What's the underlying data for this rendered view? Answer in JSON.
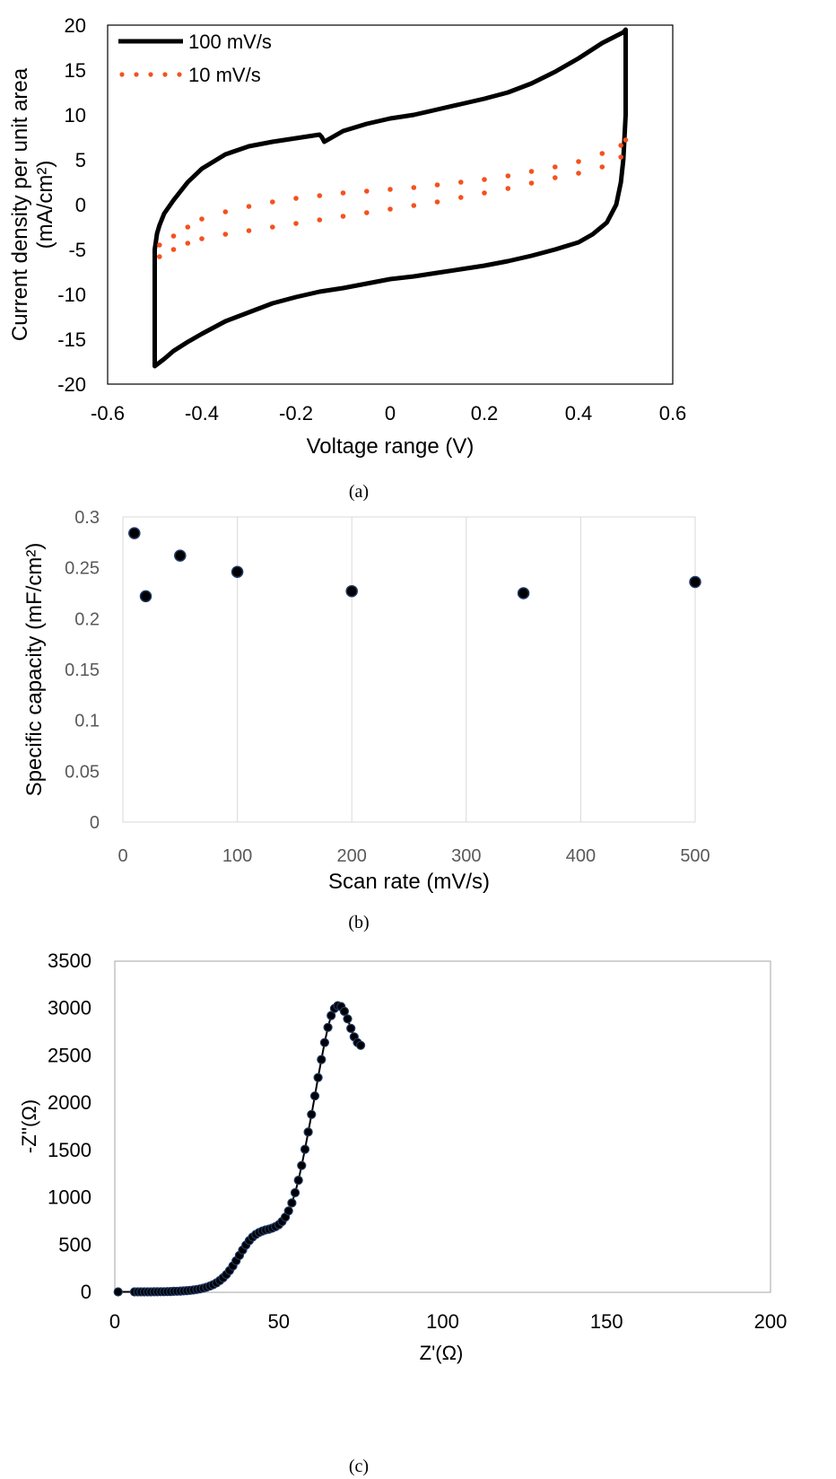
{
  "chart_data": [
    {
      "type": "line",
      "caption": "(a)",
      "xlabel": "Voltage range (V)",
      "ylabel": "Current density per unit area (mA/cm²)",
      "ylabel_lines": [
        "Current density per unit area",
        "(mA/cm²)"
      ],
      "xlim": [
        -0.6,
        0.6
      ],
      "ylim": [
        -20,
        20
      ],
      "xticks": [
        "-0.6",
        "-0.4",
        "-0.2",
        "0",
        "0.2",
        "0.4",
        "0.6"
      ],
      "yticks": [
        "-20",
        "-15",
        "-10",
        "-5",
        "0",
        "5",
        "10",
        "15",
        "20"
      ],
      "grid": false,
      "legend": "top-left",
      "series": [
        {
          "name": "100 mV/s",
          "color": "#000000",
          "style": "solid",
          "x": [
            -0.5,
            -0.495,
            -0.49,
            -0.48,
            -0.46,
            -0.43,
            -0.4,
            -0.35,
            -0.3,
            -0.25,
            -0.2,
            -0.15,
            -0.145,
            -0.14,
            -0.1,
            -0.05,
            0,
            0.05,
            0.1,
            0.15,
            0.2,
            0.25,
            0.3,
            0.35,
            0.4,
            0.45,
            0.48,
            0.495,
            0.5,
            0.5,
            0.495,
            0.49,
            0.48,
            0.46,
            0.43,
            0.4,
            0.35,
            0.3,
            0.25,
            0.2,
            0.15,
            0.1,
            0.05,
            0,
            -0.05,
            -0.1,
            -0.15,
            -0.2,
            -0.25,
            -0.3,
            -0.35,
            -0.4,
            -0.43,
            -0.46,
            -0.48,
            -0.5,
            -0.5
          ],
          "y": [
            -5,
            -3.2,
            -2.3,
            -1,
            0.5,
            2.5,
            4,
            5.6,
            6.5,
            7,
            7.4,
            7.8,
            7.5,
            7,
            8.2,
            9,
            9.6,
            10,
            10.6,
            11.2,
            11.8,
            12.5,
            13.5,
            14.8,
            16.3,
            18,
            18.8,
            19.2,
            19.5,
            10,
            5,
            2.5,
            0,
            -2,
            -3.3,
            -4.2,
            -5,
            -5.7,
            -6.3,
            -6.8,
            -7.2,
            -7.6,
            -8,
            -8.3,
            -8.8,
            -9.3,
            -9.7,
            -10.3,
            -11,
            -12,
            -13,
            -14.4,
            -15.3,
            -16.3,
            -17.2,
            -18,
            -5
          ]
        },
        {
          "name": "10 mV/s",
          "color": "#F4511E",
          "style": "dotted",
          "x": [
            -0.49,
            -0.46,
            -0.43,
            -0.4,
            -0.35,
            -0.3,
            -0.25,
            -0.2,
            -0.15,
            -0.1,
            -0.05,
            0,
            0.05,
            0.1,
            0.15,
            0.2,
            0.25,
            0.3,
            0.35,
            0.4,
            0.45,
            0.49,
            0.5,
            0.49,
            0.45,
            0.4,
            0.35,
            0.3,
            0.25,
            0.2,
            0.15,
            0.1,
            0.05,
            0,
            -0.05,
            -0.1,
            -0.15,
            -0.2,
            -0.25,
            -0.3,
            -0.35,
            -0.4,
            -0.43,
            -0.46,
            -0.49
          ],
          "y": [
            -4.5,
            -3.5,
            -2.5,
            -1.6,
            -0.8,
            -0.2,
            0.3,
            0.7,
            1,
            1.3,
            1.5,
            1.7,
            1.9,
            2.2,
            2.5,
            2.8,
            3.2,
            3.7,
            4.2,
            4.8,
            5.7,
            6.6,
            7.2,
            5.3,
            4.2,
            3.5,
            3,
            2.4,
            1.8,
            1.3,
            0.8,
            0.3,
            -0.1,
            -0.5,
            -0.9,
            -1.3,
            -1.7,
            -2.1,
            -2.5,
            -2.9,
            -3.3,
            -3.8,
            -4.3,
            -5,
            -5.8
          ]
        }
      ]
    },
    {
      "type": "scatter",
      "caption": "(b)",
      "xlabel": "Scan rate (mV/s)",
      "ylabel": "Specific capacity (mF/cm²)",
      "xlim": [
        0,
        500
      ],
      "ylim": [
        0,
        0.3
      ],
      "xticks": [
        "0",
        "100",
        "200",
        "300",
        "400",
        "500"
      ],
      "yticks": [
        "0",
        "0.05",
        "0.1",
        "0.15",
        "0.2",
        "0.25",
        "0.3"
      ],
      "grid": false,
      "marker_color": "#000000",
      "marker_edge": "#1F3864",
      "series": [
        {
          "x": [
            10,
            20,
            50,
            100,
            200,
            350,
            500
          ],
          "y": [
            0.284,
            0.222,
            0.262,
            0.246,
            0.227,
            0.225,
            0.236
          ]
        }
      ]
    },
    {
      "type": "line",
      "caption": "(c)",
      "xlabel": "Z'(Ω)",
      "ylabel": "-Z''(Ω)",
      "xlim": [
        0,
        200
      ],
      "ylim": [
        0,
        3500
      ],
      "xticks": [
        "0",
        "50",
        "100",
        "150",
        "200"
      ],
      "yticks": [
        "0",
        "500",
        "1000",
        "1500",
        "2000",
        "2500",
        "3000",
        "3500"
      ],
      "grid": false,
      "marker_color": "#000000",
      "marker_edge": "#1F3864",
      "series": [
        {
          "x": [
            1,
            6,
            7,
            8,
            9,
            10,
            11,
            12,
            13,
            14,
            15,
            16,
            17,
            18,
            19,
            20,
            21,
            22,
            23,
            24,
            25,
            26,
            27,
            28,
            29,
            30,
            31,
            32,
            33,
            34,
            35,
            36,
            37,
            38,
            39,
            40,
            41,
            42,
            43,
            44,
            45,
            46,
            47,
            48,
            49,
            50,
            51,
            52,
            53,
            54,
            55,
            56,
            57,
            58,
            59,
            60,
            61,
            62,
            63,
            64,
            65,
            66,
            67,
            68,
            69,
            70,
            71,
            72,
            73,
            74,
            75
          ],
          "y": [
            5,
            5,
            5,
            5,
            5,
            5,
            5,
            6,
            6,
            7,
            7,
            8,
            9,
            10,
            11,
            13,
            15,
            18,
            21,
            25,
            30,
            36,
            44,
            54,
            66,
            81,
            100,
            124,
            153,
            188,
            230,
            279,
            333,
            390,
            447,
            500,
            546,
            583,
            612,
            633,
            648,
            659,
            668,
            678,
            693,
            715,
            748,
            795,
            860,
            945,
            1053,
            1185,
            1340,
            1512,
            1694,
            1880,
            2075,
            2270,
            2460,
            2640,
            2800,
            2925,
            3000,
            3030,
            3020,
            2970,
            2890,
            2790,
            2700,
            2640,
            2610
          ]
        }
      ]
    }
  ]
}
